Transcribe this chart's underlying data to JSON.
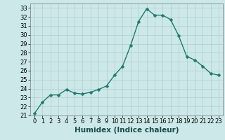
{
  "x": [
    0,
    1,
    2,
    3,
    4,
    5,
    6,
    7,
    8,
    9,
    10,
    11,
    12,
    13,
    14,
    15,
    16,
    17,
    18,
    19,
    20,
    21,
    22,
    23
  ],
  "y": [
    21.2,
    22.5,
    23.3,
    23.3,
    23.9,
    23.5,
    23.4,
    23.6,
    23.9,
    24.3,
    25.5,
    26.5,
    28.8,
    31.5,
    32.9,
    32.2,
    32.2,
    31.7,
    29.9,
    27.6,
    27.2,
    26.5,
    25.7,
    25.5
  ],
  "line_color": "#1f7a6e",
  "marker": "D",
  "markersize": 2.5,
  "bg_color": "#cce8e8",
  "grid_color": "#b0cccc",
  "xlabel": "Humidex (Indice chaleur)",
  "xlim": [
    -0.5,
    23.5
  ],
  "ylim": [
    21,
    33.5
  ],
  "xticks": [
    0,
    1,
    2,
    3,
    4,
    5,
    6,
    7,
    8,
    9,
    10,
    11,
    12,
    13,
    14,
    15,
    16,
    17,
    18,
    19,
    20,
    21,
    22,
    23
  ],
  "yticks": [
    21,
    22,
    23,
    24,
    25,
    26,
    27,
    28,
    29,
    30,
    31,
    32,
    33
  ],
  "tick_fontsize": 6.0,
  "xlabel_fontsize": 7.5,
  "linewidth": 1.0,
  "plot_bg_color": "#cce8e8"
}
